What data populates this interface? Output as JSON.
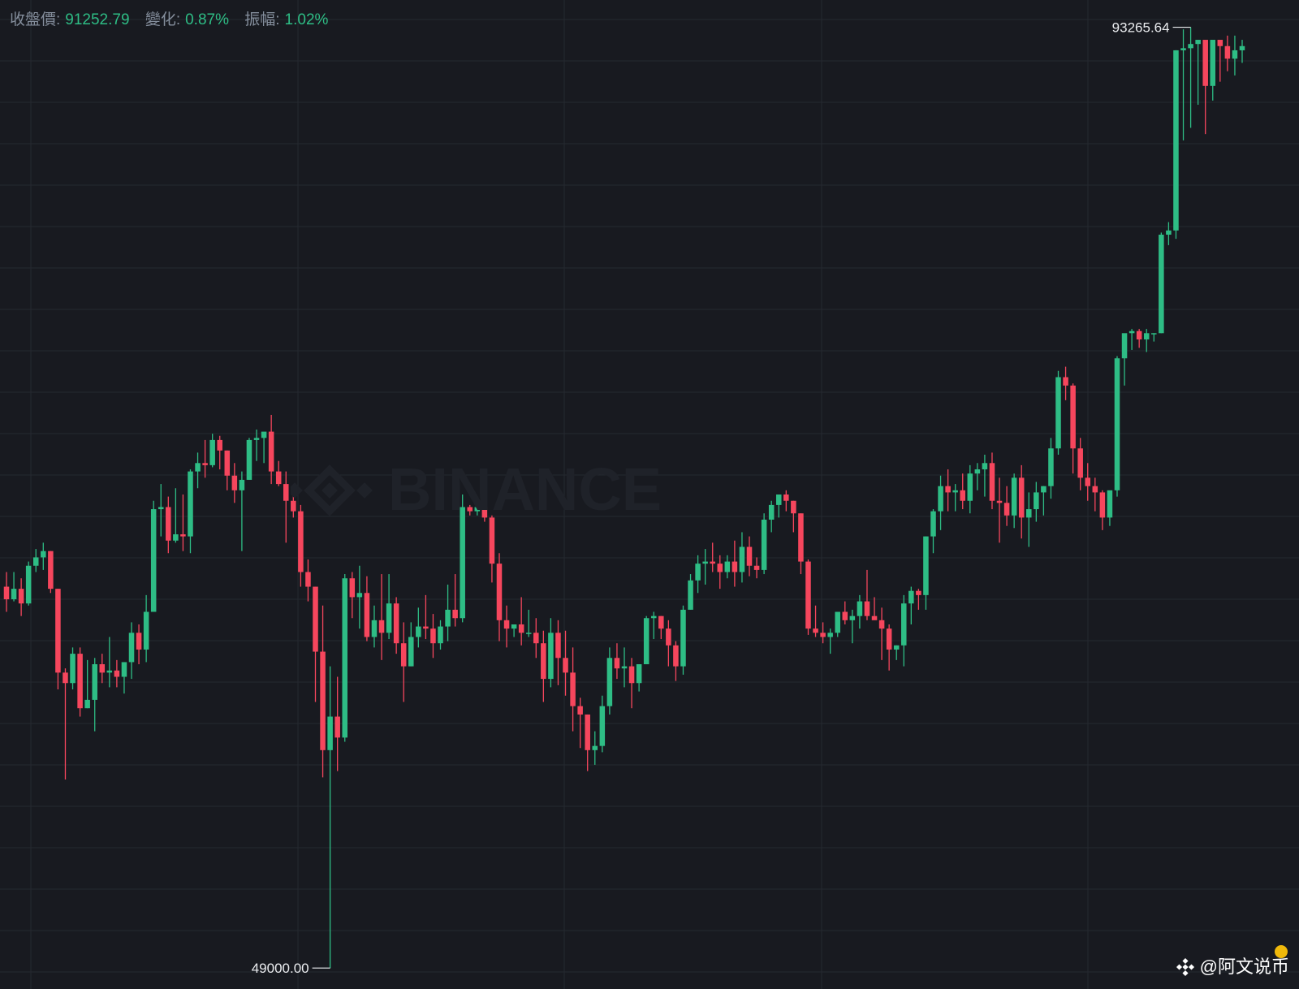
{
  "header": {
    "close_label": "收盤價:",
    "close_value": "91252.79",
    "change_label": "變化:",
    "change_value": "0.87%",
    "amplitude_label": "振幅:",
    "amplitude_value": "1.02%"
  },
  "watermark_text": "BINANCE",
  "credit": {
    "text": "@阿文说币",
    "icon": "binance-logo-icon"
  },
  "colors": {
    "background": "#181a20",
    "up": "#2ebd85",
    "down": "#f6465d",
    "grid": "#252930",
    "text": "#848e9c"
  },
  "chart_data": {
    "type": "candlestick",
    "ylim": [
      48000,
      95200
    ],
    "max_label": "93265.64",
    "min_label": "49000.00",
    "candles": [
      [
        67200,
        67900,
        66000,
        66600
      ],
      [
        66600,
        67900,
        66500,
        67100
      ],
      [
        67100,
        67600,
        65800,
        66400
      ],
      [
        66400,
        68400,
        66300,
        68200
      ],
      [
        68200,
        69000,
        67900,
        68600
      ],
      [
        68600,
        69300,
        68000,
        68900
      ],
      [
        68900,
        68900,
        66900,
        67100
      ],
      [
        67100,
        67100,
        62300,
        63100
      ],
      [
        63100,
        63300,
        58000,
        62600
      ],
      [
        62600,
        64300,
        62300,
        64000
      ],
      [
        64000,
        64300,
        61000,
        61400
      ],
      [
        61400,
        63700,
        61400,
        61800
      ],
      [
        61800,
        63800,
        60300,
        63500
      ],
      [
        63500,
        64000,
        62600,
        63100
      ],
      [
        63100,
        64800,
        62400,
        63200
      ],
      [
        63200,
        63700,
        62400,
        62900
      ],
      [
        62900,
        63600,
        62100,
        63600
      ],
      [
        63600,
        65500,
        62800,
        65000
      ],
      [
        65000,
        65400,
        63500,
        64200
      ],
      [
        64200,
        66800,
        63600,
        66000
      ],
      [
        66000,
        71300,
        66000,
        70900
      ],
      [
        70900,
        72100,
        69600,
        71000
      ],
      [
        71000,
        71500,
        68800,
        69400
      ],
      [
        69400,
        71900,
        69300,
        69700
      ],
      [
        69700,
        71600,
        68900,
        69600
      ],
      [
        69600,
        72800,
        68800,
        72700
      ],
      [
        72700,
        73600,
        71900,
        73100
      ],
      [
        73100,
        74200,
        72400,
        73000
      ],
      [
        73000,
        74500,
        72900,
        74200
      ],
      [
        74200,
        74400,
        72800,
        73700
      ],
      [
        73700,
        73700,
        71800,
        72500
      ],
      [
        72500,
        73100,
        71200,
        71800
      ],
      [
        71800,
        72700,
        68900,
        72300
      ],
      [
        72300,
        74300,
        72300,
        74200
      ],
      [
        74200,
        74700,
        73200,
        74300
      ],
      [
        74300,
        74500,
        73100,
        74600
      ],
      [
        74600,
        75400,
        72100,
        72700
      ],
      [
        72700,
        73200,
        72000,
        72100
      ],
      [
        72100,
        72700,
        69300,
        71300
      ],
      [
        71300,
        71900,
        70500,
        70800
      ],
      [
        70800,
        71100,
        67200,
        67900
      ],
      [
        67900,
        68500,
        66500,
        67200
      ],
      [
        67200,
        67200,
        61700,
        64100
      ],
      [
        64100,
        66300,
        58100,
        59400
      ],
      [
        59400,
        63400,
        49000,
        61000
      ],
      [
        61000,
        62900,
        58400,
        60000
      ],
      [
        60000,
        67800,
        59800,
        67600
      ],
      [
        67600,
        67900,
        65700,
        66700
      ],
      [
        66700,
        68200,
        65200,
        66900
      ],
      [
        66900,
        67700,
        64600,
        64800
      ],
      [
        64800,
        66300,
        64300,
        65600
      ],
      [
        65600,
        67800,
        63700,
        65000
      ],
      [
        65000,
        67800,
        64700,
        66400
      ],
      [
        66400,
        66700,
        64000,
        64500
      ],
      [
        64500,
        65500,
        61700,
        63400
      ],
      [
        63400,
        65500,
        63400,
        64800
      ],
      [
        64800,
        66200,
        64300,
        65300
      ],
      [
        65300,
        66800,
        64700,
        65200
      ],
      [
        65200,
        65900,
        63800,
        64500
      ],
      [
        64500,
        65600,
        64200,
        65300
      ],
      [
        65300,
        67300,
        64600,
        66100
      ],
      [
        66100,
        67800,
        65300,
        65700
      ],
      [
        65700,
        71600,
        65500,
        71000
      ],
      [
        71000,
        71100,
        70600,
        70800
      ],
      [
        70800,
        71300,
        70600,
        71000
      ],
      [
        71000,
        71300,
        70300,
        70500
      ],
      [
        70500,
        70600,
        67400,
        68300
      ],
      [
        68300,
        68800,
        64600,
        65600
      ],
      [
        65600,
        66300,
        64300,
        65200
      ],
      [
        65200,
        65200,
        64800,
        65400
      ],
      [
        65400,
        66700,
        64400,
        65000
      ],
      [
        65000,
        66100,
        64800,
        65000
      ],
      [
        65000,
        65700,
        63800,
        64500
      ],
      [
        64500,
        65100,
        61700,
        62800
      ],
      [
        62800,
        65700,
        62400,
        65000
      ],
      [
        65000,
        65600,
        62500,
        63800
      ],
      [
        63800,
        65100,
        62000,
        63100
      ],
      [
        63100,
        64300,
        60300,
        61500
      ],
      [
        61500,
        61900,
        59500,
        61100
      ],
      [
        61100,
        61100,
        58400,
        59400
      ],
      [
        59400,
        60300,
        58700,
        59600
      ],
      [
        59600,
        62000,
        59300,
        61500
      ],
      [
        61500,
        64300,
        61100,
        63800
      ],
      [
        63800,
        64500,
        62800,
        63300
      ],
      [
        63300,
        64300,
        62400,
        63400
      ],
      [
        63400,
        63800,
        61400,
        62600
      ],
      [
        62600,
        63500,
        62200,
        63500
      ],
      [
        63500,
        65800,
        63500,
        65700
      ],
      [
        65700,
        66000,
        64700,
        65800
      ],
      [
        65800,
        65800,
        64700,
        65200
      ],
      [
        65200,
        65600,
        63400,
        64400
      ],
      [
        64400,
        64600,
        62700,
        63400
      ],
      [
        63400,
        66300,
        63000,
        66100
      ],
      [
        66100,
        67800,
        66100,
        67500
      ],
      [
        67500,
        68700,
        66900,
        68300
      ],
      [
        68300,
        69000,
        67300,
        68400
      ],
      [
        68400,
        69300,
        67900,
        68300
      ],
      [
        68300,
        68700,
        67100,
        67900
      ],
      [
        67900,
        68700,
        67600,
        68400
      ],
      [
        68400,
        69400,
        67200,
        67900
      ],
      [
        67900,
        69800,
        67400,
        69100
      ],
      [
        69100,
        69600,
        67700,
        68200
      ],
      [
        68200,
        68600,
        67600,
        68000
      ],
      [
        68000,
        70700,
        67800,
        70400
      ],
      [
        70400,
        71300,
        69800,
        71100
      ],
      [
        71100,
        71600,
        70500,
        71600
      ],
      [
        71600,
        71800,
        70800,
        71300
      ],
      [
        71300,
        71300,
        69800,
        70700
      ],
      [
        70700,
        70700,
        67800,
        68400
      ],
      [
        68400,
        68500,
        64900,
        65200
      ],
      [
        65200,
        66300,
        64800,
        65000
      ],
      [
        65000,
        65500,
        64500,
        64800
      ],
      [
        64800,
        65200,
        64000,
        65000
      ],
      [
        65000,
        66000,
        64800,
        66000
      ],
      [
        66000,
        66500,
        65400,
        65600
      ],
      [
        65600,
        66100,
        64500,
        65800
      ],
      [
        65800,
        66800,
        65200,
        66500
      ],
      [
        66500,
        68000,
        65600,
        65800
      ],
      [
        65800,
        66700,
        65800,
        65600
      ],
      [
        65600,
        66200,
        63700,
        65200
      ],
      [
        65200,
        65400,
        63200,
        64200
      ],
      [
        64200,
        64400,
        63700,
        64400
      ],
      [
        64400,
        66800,
        63400,
        66400
      ],
      [
        66400,
        67200,
        65400,
        67000
      ],
      [
        67000,
        67100,
        66100,
        66800
      ],
      [
        66800,
        69600,
        66100,
        69600
      ],
      [
        69600,
        70900,
        68800,
        70800
      ],
      [
        70800,
        72500,
        69900,
        72000
      ],
      [
        72000,
        72800,
        70800,
        71700
      ],
      [
        71700,
        72100,
        70800,
        71800
      ],
      [
        71800,
        72600,
        70900,
        71300
      ],
      [
        71300,
        73000,
        70700,
        72600
      ],
      [
        72600,
        73100,
        71800,
        72800
      ],
      [
        72800,
        73500,
        71500,
        73100
      ],
      [
        73100,
        73600,
        70900,
        71300
      ],
      [
        71300,
        72400,
        69300,
        71200
      ],
      [
        71200,
        72000,
        70100,
        70600
      ],
      [
        70600,
        72600,
        70000,
        72400
      ],
      [
        72400,
        73000,
        69500,
        70500
      ],
      [
        70500,
        71700,
        69100,
        70900
      ],
      [
        70900,
        72200,
        70300,
        71700
      ],
      [
        71700,
        72000,
        70600,
        72000
      ],
      [
        72000,
        74300,
        71400,
        73800
      ],
      [
        73800,
        77500,
        73500,
        77200
      ],
      [
        77200,
        77700,
        76100,
        76800
      ],
      [
        76800,
        76900,
        72600,
        73800
      ],
      [
        73800,
        74300,
        71800,
        72400
      ],
      [
        72400,
        73100,
        71300,
        72000
      ],
      [
        72000,
        72400,
        70800,
        71700
      ],
      [
        71700,
        71800,
        69900,
        70500
      ],
      [
        70500,
        71700,
        70100,
        71800
      ],
      [
        71800,
        78200,
        71500,
        78100
      ],
      [
        78100,
        79200,
        76800,
        79300
      ],
      [
        79300,
        79500,
        78500,
        79400
      ],
      [
        79400,
        79500,
        78600,
        79000
      ],
      [
        79000,
        79500,
        78400,
        79300
      ],
      [
        79300,
        79300,
        78900,
        79300
      ],
      [
        79300,
        84100,
        79300,
        84000
      ],
      [
        84000,
        84600,
        83500,
        84200
      ],
      [
        84200,
        92800,
        83800,
        92800
      ],
      [
        92800,
        93800,
        88500,
        92900
      ],
      [
        92900,
        93900,
        89100,
        93100
      ],
      [
        93100,
        93265,
        90200,
        93300
      ],
      [
        93300,
        92900,
        88800,
        91100
      ],
      [
        91100,
        92900,
        90400,
        93300
      ],
      [
        93300,
        93100,
        91300,
        93000
      ],
      [
        93000,
        93500,
        91800,
        92400
      ],
      [
        92400,
        93500,
        91600,
        92800
      ],
      [
        92800,
        93300,
        92200,
        93000
      ]
    ]
  }
}
